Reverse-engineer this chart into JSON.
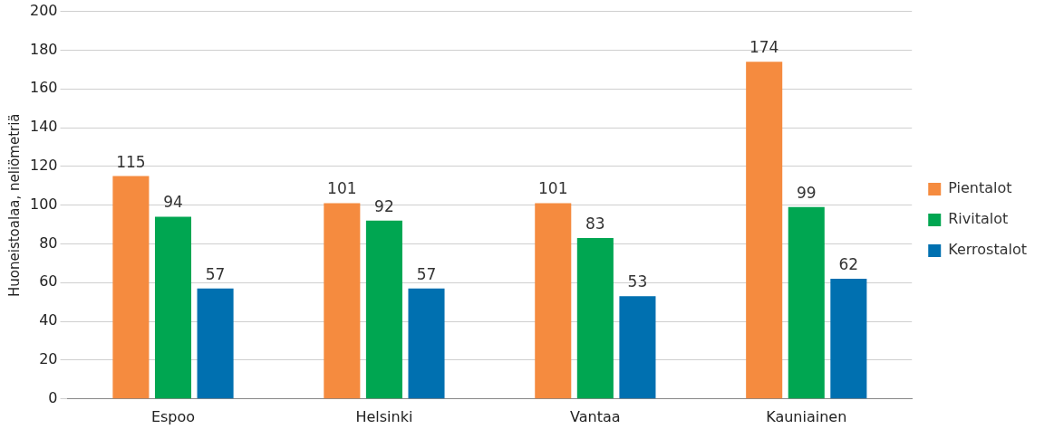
{
  "chart_data": {
    "type": "bar",
    "ylabel": "Huoneistoalaa, neliömetriä",
    "categories": [
      "Espoo",
      "Helsinki",
      "Vantaa",
      "Kauniainen"
    ],
    "series": [
      {
        "name": "Pientalot",
        "color": "#f58b3f",
        "values": [
          115,
          101,
          101,
          174
        ]
      },
      {
        "name": "Rivitalot",
        "color": "#00a651",
        "values": [
          94,
          92,
          83,
          99
        ]
      },
      {
        "name": "Kerrostalot",
        "color": "#0070b0",
        "values": [
          57,
          57,
          53,
          62
        ]
      }
    ],
    "ylim": [
      0,
      200
    ],
    "yticks": [
      0,
      20,
      40,
      60,
      80,
      100,
      120,
      140,
      160,
      180,
      200
    ],
    "grid": "y",
    "legend": "right",
    "data_labels": true
  }
}
